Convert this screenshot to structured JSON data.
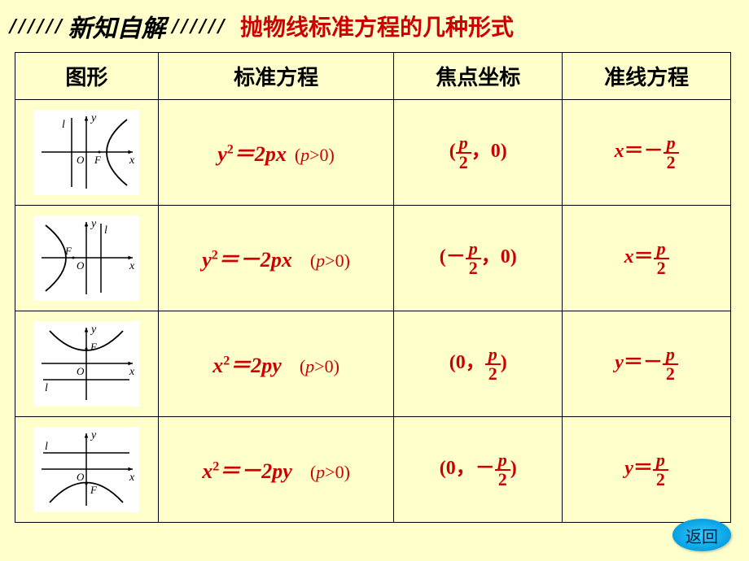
{
  "header": {
    "subtitle": "新知自解",
    "title": "抛物线标准方程的几种形式",
    "hatch": "//////"
  },
  "columns": {
    "graph": "图形",
    "equation": "标准方程",
    "focus": "焦点坐标",
    "directrix": "准线方程"
  },
  "rows": [
    {
      "equation_html": "<span class='red eq'>y<sup>2</sup>＝2<span>px</span></span> <span class='red cond'>(<span class='p'>p</span>&gt;0)</span>",
      "focus_html": "<span class='red fc'>(<span class='frac'><span class='num'>p</span><span class='den'>2</span></span>，0)</span>",
      "directrix_html": "<span class='red fc'><i>x</i>＝－<span class='frac'><span class='num'>p</span><span class='den'>2</span></span></span>",
      "graph": {
        "type": "right",
        "labels": {
          "l": "l",
          "O": "O",
          "F": "F",
          "x": "x",
          "y": "y"
        }
      }
    },
    {
      "equation_html": "<span class='red eq'>y<sup>2</sup>＝－2<span>px</span></span>　<span class='red cond'>(<span class='p'>p</span>&gt;0)</span>",
      "focus_html": "<span class='red fc'>(－<span class='frac'><span class='num'>p</span><span class='den'>2</span></span>，0)</span>",
      "directrix_html": "<span class='red fc'><i>x</i>＝<span class='frac'><span class='num'>p</span><span class='den'>2</span></span></span>",
      "graph": {
        "type": "left",
        "labels": {
          "l": "l",
          "O": "O",
          "F": "F",
          "x": "x",
          "y": "y"
        }
      }
    },
    {
      "equation_html": "<span class='red eq'>x<sup>2</sup>＝2<span>py</span></span>　<span class='red cond'>(<span class='p'>p</span>&gt;0)</span>",
      "focus_html": "<span class='red fc'>(0，<span class='frac'><span class='num'>p</span><span class='den'>2</span></span>)</span>",
      "directrix_html": "<span class='red fc'><i>y</i>＝－<span class='frac'><span class='num'>p</span><span class='den'>2</span></span></span>",
      "graph": {
        "type": "up",
        "labels": {
          "l": "l",
          "O": "O",
          "F": "F",
          "x": "x",
          "y": "y"
        }
      }
    },
    {
      "equation_html": "<span class='red eq'>x<sup>2</sup>＝－2<span>py</span></span>　<span class='red cond'>(<span class='p'>p</span>&gt;0)</span>",
      "focus_html": "<span class='red fc'>(0，－<span class='frac'><span class='num'>p</span><span class='den'>2</span></span>)</span>",
      "directrix_html": "<span class='red fc'><i>y</i>＝<span class='frac'><span class='num'>p</span><span class='den'>2</span></span></span>",
      "graph": {
        "type": "down",
        "labels": {
          "l": "l",
          "O": "O",
          "F": "F",
          "x": "x",
          "y": "y"
        }
      }
    }
  ],
  "return_button": "返回",
  "style": {
    "background": "#ffffcc",
    "accent": "#cc0000",
    "graph_bg": "#ffffff",
    "border": "#000000",
    "button_bg": "#33ccff"
  }
}
